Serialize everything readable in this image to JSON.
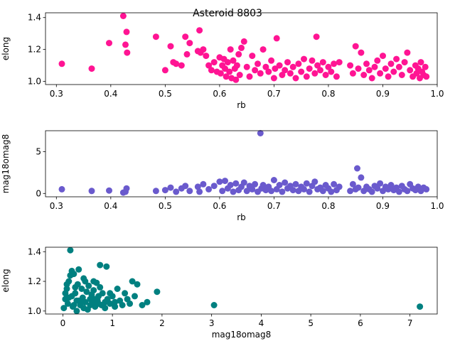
{
  "figure": {
    "title": "Asteroid 8803"
  },
  "chart_data": [
    {
      "type": "scatter",
      "title": "Asteroid 8803",
      "xlabel": "rb",
      "ylabel": "elong",
      "xlim": [
        0.28,
        1.0
      ],
      "ylim": [
        0.98,
        1.43
      ],
      "xticks": [
        0.3,
        0.4,
        0.5,
        0.6,
        0.7,
        0.8,
        0.9,
        1.0
      ],
      "yticks": [
        1.0,
        1.2,
        1.4
      ],
      "xtick_labels": [
        "0.3",
        "0.4",
        "0.5",
        "0.6",
        "0.7",
        "0.8",
        "0.9",
        "1.0"
      ],
      "ytick_labels": [
        "1.0",
        "1.2",
        "1.4"
      ],
      "color": "#ff1493",
      "x": [
        0.31,
        0.365,
        0.397,
        0.423,
        0.427,
        0.429,
        0.43,
        0.483,
        0.5,
        0.51,
        0.515,
        0.52,
        0.53,
        0.537,
        0.54,
        0.545,
        0.56,
        0.563,
        0.565,
        0.57,
        0.575,
        0.58,
        0.585,
        0.59,
        0.595,
        0.6,
        0.602,
        0.605,
        0.608,
        0.61,
        0.612,
        0.615,
        0.618,
        0.62,
        0.622,
        0.625,
        0.628,
        0.63,
        0.632,
        0.635,
        0.637,
        0.64,
        0.645,
        0.65,
        0.655,
        0.66,
        0.665,
        0.67,
        0.675,
        0.68,
        0.685,
        0.69,
        0.695,
        0.7,
        0.702,
        0.705,
        0.71,
        0.715,
        0.72,
        0.725,
        0.73,
        0.735,
        0.74,
        0.745,
        0.75,
        0.755,
        0.76,
        0.765,
        0.77,
        0.775,
        0.778,
        0.78,
        0.785,
        0.79,
        0.795,
        0.8,
        0.805,
        0.81,
        0.815,
        0.82,
        0.84,
        0.845,
        0.85,
        0.855,
        0.86,
        0.865,
        0.87,
        0.875,
        0.88,
        0.885,
        0.89,
        0.895,
        0.9,
        0.905,
        0.91,
        0.915,
        0.92,
        0.925,
        0.93,
        0.935,
        0.94,
        0.945,
        0.95,
        0.955,
        0.96,
        0.962,
        0.965,
        0.968,
        0.97,
        0.972,
        0.975,
        0.978,
        0.98
      ],
      "y": [
        1.11,
        1.08,
        1.24,
        1.41,
        1.23,
        1.31,
        1.18,
        1.28,
        1.07,
        1.22,
        1.12,
        1.11,
        1.1,
        1.28,
        1.17,
        1.24,
        1.19,
        1.32,
        1.18,
        1.2,
        1.16,
        1.1,
        1.07,
        1.12,
        1.06,
        1.15,
        1.05,
        1.1,
        1.14,
        1.08,
        1.03,
        1.12,
        1.06,
        1.2,
        1.02,
        1.13,
        1.08,
        1.01,
        1.1,
        1.17,
        1.04,
        1.21,
        1.25,
        1.09,
        1.03,
        1.16,
        1.07,
        1.11,
        1.05,
        1.2,
        1.09,
        1.06,
        1.13,
        1.02,
        1.08,
        1.27,
        1.1,
        1.04,
        1.07,
        1.12,
        1.05,
        1.09,
        1.02,
        1.11,
        1.06,
        1.14,
        1.03,
        1.08,
        1.13,
        1.05,
        1.28,
        1.1,
        1.07,
        1.12,
        1.04,
        1.09,
        1.06,
        1.11,
        1.03,
        1.12,
        1.1,
        1.05,
        1.22,
        1.08,
        1.18,
        1.04,
        1.11,
        1.07,
        1.02,
        1.09,
        1.13,
        1.05,
        1.16,
        1.08,
        1.03,
        1.11,
        1.06,
        1.14,
        1.09,
        1.04,
        1.12,
        1.18,
        1.07,
        1.03,
        1.1,
        1.05,
        1.08,
        1.02,
        1.12,
        1.06,
        1.04,
        1.09,
        1.03
      ]
    },
    {
      "type": "scatter",
      "xlabel": "rb",
      "ylabel": "mag18omag8",
      "xlim": [
        0.28,
        1.0
      ],
      "ylim": [
        -0.4,
        7.5
      ],
      "xticks": [
        0.3,
        0.4,
        0.5,
        0.6,
        0.7,
        0.8,
        0.9,
        1.0
      ],
      "yticks": [
        0,
        5
      ],
      "xtick_labels": [
        "0.3",
        "0.4",
        "0.5",
        "0.6",
        "0.7",
        "0.8",
        "0.9",
        "1.0"
      ],
      "ytick_labels": [
        "0",
        "5"
      ],
      "color": "#6a5acd",
      "x": [
        0.31,
        0.365,
        0.397,
        0.423,
        0.427,
        0.429,
        0.483,
        0.5,
        0.51,
        0.52,
        0.53,
        0.537,
        0.545,
        0.56,
        0.563,
        0.57,
        0.58,
        0.59,
        0.6,
        0.605,
        0.61,
        0.615,
        0.62,
        0.625,
        0.63,
        0.635,
        0.64,
        0.645,
        0.65,
        0.655,
        0.66,
        0.665,
        0.67,
        0.675,
        0.677,
        0.68,
        0.685,
        0.69,
        0.695,
        0.7,
        0.705,
        0.71,
        0.715,
        0.72,
        0.725,
        0.73,
        0.735,
        0.74,
        0.745,
        0.75,
        0.755,
        0.76,
        0.765,
        0.77,
        0.775,
        0.78,
        0.785,
        0.79,
        0.795,
        0.8,
        0.805,
        0.81,
        0.815,
        0.82,
        0.84,
        0.845,
        0.85,
        0.853,
        0.855,
        0.86,
        0.865,
        0.87,
        0.875,
        0.88,
        0.885,
        0.89,
        0.895,
        0.9,
        0.905,
        0.91,
        0.915,
        0.92,
        0.925,
        0.93,
        0.935,
        0.94,
        0.945,
        0.95,
        0.955,
        0.96,
        0.965,
        0.97,
        0.975,
        0.98
      ],
      "y": [
        0.5,
        0.3,
        0.35,
        0.1,
        0.2,
        0.6,
        0.3,
        0.4,
        0.7,
        0.2,
        0.6,
        0.9,
        0.3,
        0.8,
        0.2,
        1.1,
        0.5,
        0.9,
        1.4,
        0.3,
        1.5,
        0.6,
        1.0,
        0.2,
        1.2,
        0.4,
        0.8,
        1.3,
        0.3,
        0.9,
        0.5,
        1.1,
        0.2,
        7.2,
        0.6,
        1.0,
        0.4,
        0.8,
        0.3,
        1.6,
        0.5,
        1.0,
        0.2,
        1.3,
        0.6,
        0.9,
        0.4,
        1.1,
        0.3,
        0.8,
        0.5,
        1.2,
        0.2,
        0.9,
        1.4,
        0.5,
        0.7,
        0.3,
        1.0,
        0.6,
        0.2,
        1.1,
        0.4,
        0.8,
        0.3,
        1.1,
        0.5,
        3.0,
        0.7,
        1.9,
        0.3,
        0.8,
        0.5,
        0.2,
        0.9,
        0.6,
        1.2,
        0.3,
        0.8,
        0.5,
        1.0,
        0.4,
        0.7,
        0.2,
        0.9,
        0.5,
        0.3,
        1.1,
        0.6,
        0.4,
        0.8,
        0.3,
        0.7,
        0.5
      ]
    },
    {
      "type": "scatter",
      "xlabel": "mag18omag8",
      "ylabel": "elong",
      "xlim": [
        -0.35,
        7.55
      ],
      "ylim": [
        0.98,
        1.43
      ],
      "xticks": [
        0,
        1,
        2,
        3,
        4,
        5,
        6,
        7
      ],
      "yticks": [
        1.0,
        1.2,
        1.4
      ],
      "xtick_labels": [
        "0",
        "1",
        "2",
        "3",
        "4",
        "5",
        "6",
        "7"
      ],
      "ytick_labels": [
        "1.0",
        "1.2",
        "1.4"
      ],
      "color": "#008080",
      "x": [
        0.02,
        0.05,
        0.08,
        0.1,
        0.12,
        0.15,
        0.18,
        0.2,
        0.22,
        0.25,
        0.28,
        0.3,
        0.32,
        0.35,
        0.38,
        0.4,
        0.42,
        0.45,
        0.48,
        0.5,
        0.52,
        0.55,
        0.58,
        0.6,
        0.62,
        0.65,
        0.68,
        0.7,
        0.72,
        0.75,
        0.78,
        0.8,
        0.85,
        0.88,
        0.9,
        0.95,
        1.0,
        1.05,
        1.1,
        1.15,
        1.2,
        1.25,
        1.3,
        1.35,
        1.4,
        1.45,
        1.5,
        1.6,
        1.7,
        1.9,
        0.15,
        0.25,
        0.35,
        0.45,
        0.55,
        0.65,
        0.75,
        0.85,
        0.95,
        1.05,
        0.18,
        0.28,
        0.42,
        0.08,
        0.12,
        0.22,
        0.32,
        0.05,
        0.62,
        0.72,
        3.05,
        7.2
      ],
      "y": [
        1.02,
        1.08,
        1.15,
        1.05,
        1.2,
        1.41,
        1.1,
        1.03,
        1.25,
        1.12,
        1.07,
        1.18,
        1.28,
        1.04,
        1.15,
        1.09,
        1.22,
        1.06,
        1.13,
        1.01,
        1.17,
        1.08,
        1.11,
        1.05,
        1.14,
        1.03,
        1.19,
        1.07,
        1.1,
        1.31,
        1.04,
        1.12,
        1.06,
        1.3,
        1.08,
        1.05,
        1.1,
        1.03,
        1.15,
        1.07,
        1.04,
        1.12,
        1.08,
        1.05,
        1.2,
        1.1,
        1.18,
        1.04,
        1.06,
        1.13,
        1.24,
        1.16,
        1.06,
        1.2,
        1.04,
        1.08,
        1.16,
        1.02,
        1.12,
        1.06,
        1.27,
        1.0,
        1.02,
        1.18,
        1.09,
        1.04,
        1.07,
        1.12,
        1.2,
        1.05,
        1.04,
        1.03
      ]
    }
  ]
}
